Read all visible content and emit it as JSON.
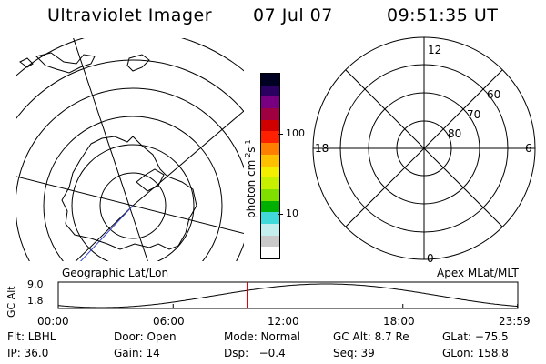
{
  "header": {
    "instrument": "Ultraviolet Imager",
    "date": "07 Jul 07",
    "time": "09:51:35 UT"
  },
  "left_panel": {
    "caption": "Geographic Lat/Lon"
  },
  "right_panel": {
    "caption": "Apex MLat/MLT",
    "mlt_labels": {
      "top": "12",
      "left": "18",
      "right": "6",
      "bottom": "0"
    },
    "lat_labels": [
      "60",
      "70",
      "80"
    ]
  },
  "colorbar": {
    "unit_label": "photon cm",
    "unit_exp1": "-2",
    "unit_s": "s",
    "unit_exp2": "-1",
    "ticks": [
      "100",
      "10"
    ],
    "scale": "log",
    "colors": [
      "#ffffff",
      "#c9c9c9",
      "#c4eeee",
      "#41d9d9",
      "#00b000",
      "#7fe000",
      "#c7f000",
      "#f2f000",
      "#ffc000",
      "#ff8000",
      "#ff2000",
      "#d00000",
      "#9e0040",
      "#780080",
      "#2a0060",
      "#000022"
    ]
  },
  "altitude_plot": {
    "ylabel": "GC Alt",
    "yticks": [
      "9.0",
      "1.8"
    ],
    "xticks": [
      "00:00",
      "06:00",
      "12:00",
      "18:00",
      "23:59"
    ],
    "marker_time": "09:51:35",
    "marker_color": "#d00000"
  },
  "status": {
    "filter": "Flt: LBHL",
    "door": "Door: Open",
    "mode": "Mode: Normal",
    "gc_alt": "GC Alt: 8.7 Re",
    "glat": "GLat: −75.5",
    "ip": "IP: 36.0",
    "gain": "Gain: 14",
    "dsp": "Dsp:   −0.4",
    "seq": "Seq: 39",
    "glon": "GLon: 158.8"
  }
}
